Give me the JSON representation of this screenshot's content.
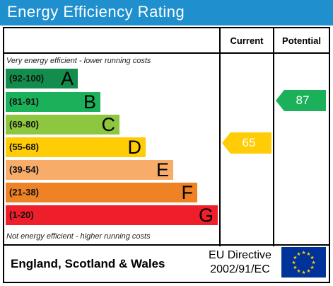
{
  "title": "Energy Efficiency Rating",
  "columns": {
    "current": "Current",
    "potential": "Potential"
  },
  "top_note": "Very energy efficient - lower running costs",
  "bottom_note": "Not energy efficient - higher running costs",
  "bands": [
    {
      "range": "(92-100)",
      "letter": "A",
      "color": "#138d4b"
    },
    {
      "range": "(81-91)",
      "letter": "B",
      "color": "#1bb15a"
    },
    {
      "range": "(69-80)",
      "letter": "C",
      "color": "#8dc63f"
    },
    {
      "range": "(55-68)",
      "letter": "D",
      "color": "#ffcc05"
    },
    {
      "range": "(39-54)",
      "letter": "E",
      "color": "#f7ac6a"
    },
    {
      "range": "(21-38)",
      "letter": "F",
      "color": "#ef8224"
    },
    {
      "range": "(1-20)",
      "letter": "G",
      "color": "#ee1e2a"
    }
  ],
  "current": {
    "value": "65",
    "color": "#ffcc05"
  },
  "potential": {
    "value": "87",
    "color": "#1bb15a"
  },
  "footer": {
    "region": "England, Scotland & Wales",
    "directive_line1": "EU Directive",
    "directive_line2": "2002/91/EC"
  },
  "eu_flag": {
    "icon": "eu-flag-icon",
    "bg": "#003399",
    "stars": "#ffcc00"
  }
}
